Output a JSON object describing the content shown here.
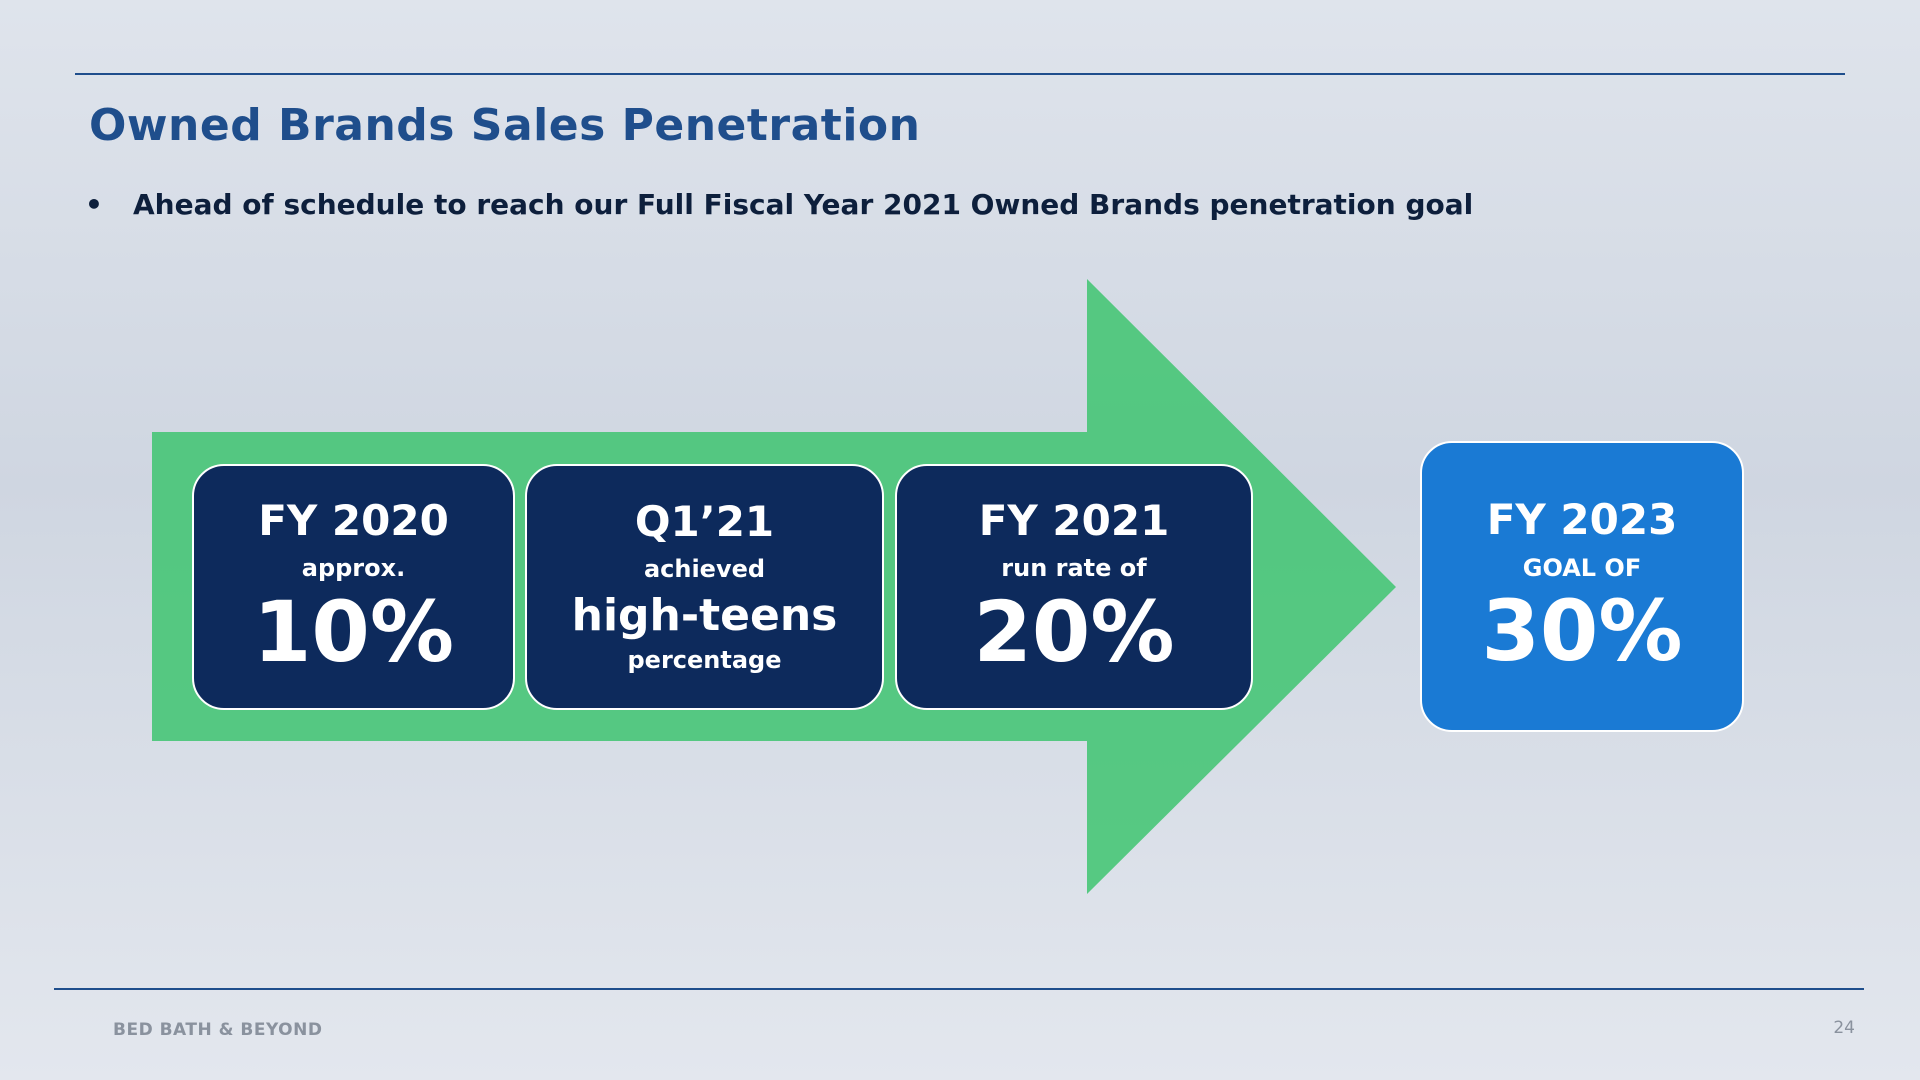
{
  "header": {
    "title": "Owned Brands Sales Penetration",
    "bullet": "Ahead of schedule to reach our Full Fiscal Year 2021 Owned Brands penetration goal"
  },
  "boxes": [
    {
      "period": "FY 2020",
      "caption": "approx.",
      "value": "10%"
    },
    {
      "period": "Q1’21",
      "caption": "achieved",
      "value": "high-teens",
      "sub": "percentage"
    },
    {
      "period": "FY 2021",
      "caption": "run rate of",
      "value": "20%"
    },
    {
      "period": "FY 2023",
      "caption": "GOAL OF",
      "value": "30%"
    }
  ],
  "footer": {
    "brand": "BED BATH & BEYOND",
    "page": "24"
  }
}
